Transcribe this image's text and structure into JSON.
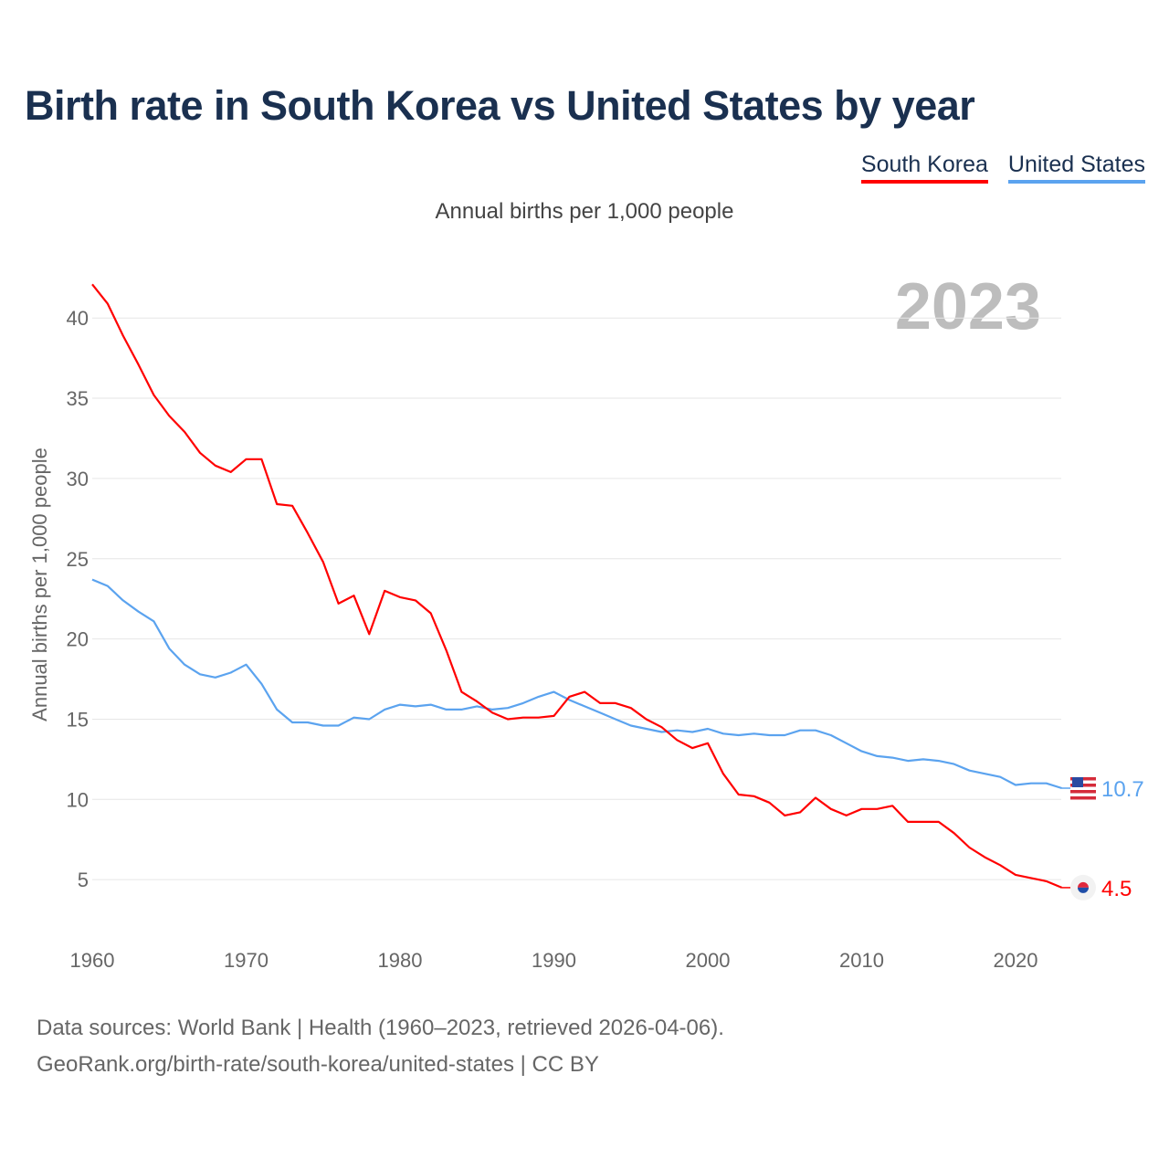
{
  "chart_data": {
    "type": "line",
    "title": "Birth rate in South Korea vs United States by year",
    "subtitle": "Annual births per 1,000 people",
    "ylabel": "Annual births per 1,000 people",
    "xlabel": "",
    "year_label": "2023",
    "xlim": [
      1960,
      2023
    ],
    "ylim": [
      0,
      45
    ],
    "x_ticks": [
      1960,
      1970,
      1980,
      1990,
      2000,
      2010,
      2020
    ],
    "y_ticks": [
      5,
      10,
      15,
      20,
      25,
      30,
      35,
      40
    ],
    "grid": true,
    "legend_position": "top-right",
    "x": [
      1960,
      1961,
      1962,
      1963,
      1964,
      1965,
      1966,
      1967,
      1968,
      1969,
      1970,
      1971,
      1972,
      1973,
      1974,
      1975,
      1976,
      1977,
      1978,
      1979,
      1980,
      1981,
      1982,
      1983,
      1984,
      1985,
      1986,
      1987,
      1988,
      1989,
      1990,
      1991,
      1992,
      1993,
      1994,
      1995,
      1996,
      1997,
      1998,
      1999,
      2000,
      2001,
      2002,
      2003,
      2004,
      2005,
      2006,
      2007,
      2008,
      2009,
      2010,
      2011,
      2012,
      2013,
      2014,
      2015,
      2016,
      2017,
      2018,
      2019,
      2020,
      2021,
      2022,
      2023
    ],
    "series": [
      {
        "name": "South Korea",
        "color": "#ff0000",
        "end_label": "4.5",
        "values": [
          42.1,
          40.9,
          38.9,
          37.1,
          35.2,
          33.9,
          32.9,
          31.6,
          30.8,
          30.4,
          31.2,
          31.2,
          28.4,
          28.3,
          26.6,
          24.8,
          22.2,
          22.7,
          20.3,
          23.0,
          22.6,
          22.4,
          21.6,
          19.3,
          16.7,
          16.1,
          15.4,
          15.0,
          15.1,
          15.1,
          15.2,
          16.4,
          16.7,
          16.0,
          16.0,
          15.7,
          15.0,
          14.5,
          13.7,
          13.2,
          13.5,
          11.6,
          10.3,
          10.2,
          9.8,
          9.0,
          9.2,
          10.1,
          9.4,
          9.0,
          9.4,
          9.4,
          9.6,
          8.6,
          8.6,
          8.6,
          7.9,
          7.0,
          6.4,
          5.9,
          5.3,
          5.1,
          4.9,
          4.5
        ]
      },
      {
        "name": "United States",
        "color": "#5ba3ef",
        "end_label": "10.7",
        "values": [
          23.7,
          23.3,
          22.4,
          21.7,
          21.1,
          19.4,
          18.4,
          17.8,
          17.6,
          17.9,
          18.4,
          17.2,
          15.6,
          14.8,
          14.8,
          14.6,
          14.6,
          15.1,
          15.0,
          15.6,
          15.9,
          15.8,
          15.9,
          15.6,
          15.6,
          15.8,
          15.6,
          15.7,
          16.0,
          16.4,
          16.7,
          16.2,
          15.8,
          15.4,
          15.0,
          14.6,
          14.4,
          14.2,
          14.3,
          14.2,
          14.4,
          14.1,
          14.0,
          14.1,
          14.0,
          14.0,
          14.3,
          14.3,
          14.0,
          13.5,
          13.0,
          12.7,
          12.6,
          12.4,
          12.5,
          12.4,
          12.2,
          11.8,
          11.6,
          11.4,
          10.9,
          11.0,
          11.0,
          10.7
        ]
      }
    ]
  },
  "footer": {
    "line1": "Data sources: World Bank | Health (1960–2023, retrieved 2026-04-06).",
    "line2": "GeoRank.org/birth-rate/south-korea/united-states | CC BY"
  }
}
